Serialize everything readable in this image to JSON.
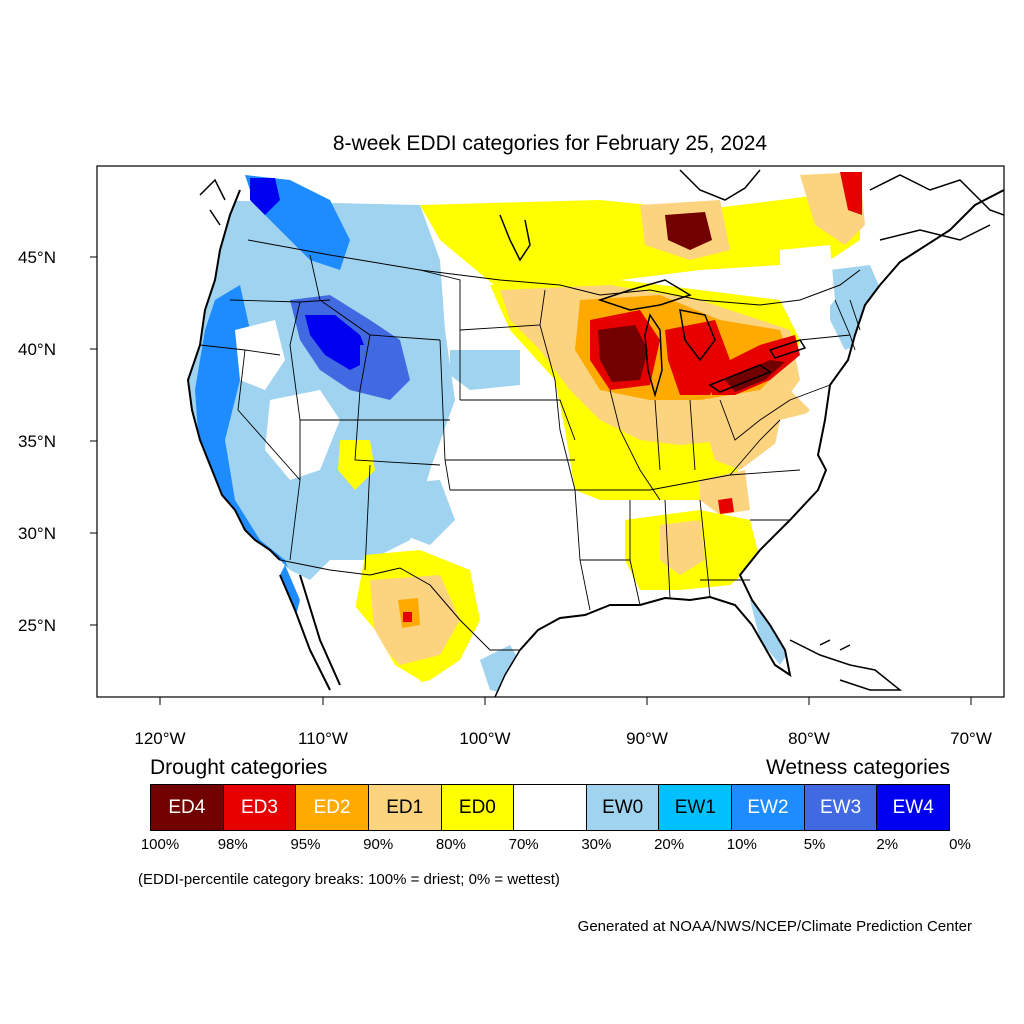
{
  "title": "8-week EDDI categories for February 25, 2024",
  "axes": {
    "lat_labels": [
      "45°N",
      "40°N",
      "35°N",
      "30°N",
      "25°N"
    ],
    "lon_labels": [
      "120°W",
      "110°W",
      "100°W",
      "90°W",
      "80°W",
      "70°W"
    ]
  },
  "legend": {
    "drought_heading": "Drought categories",
    "wetness_heading": "Wetness categories",
    "categories": [
      {
        "label": "ED4",
        "color": "#730000",
        "text_color": "#ffffff"
      },
      {
        "label": "ED3",
        "color": "#e60000",
        "text_color": "#ffffff"
      },
      {
        "label": "ED2",
        "color": "#ffaa00",
        "text_color": "#ffffff"
      },
      {
        "label": "ED1",
        "color": "#fcd37f",
        "text_color": "#000000"
      },
      {
        "label": "ED0",
        "color": "#ffff00",
        "text_color": "#000000"
      },
      {
        "label": "",
        "color": "#ffffff",
        "text_color": "#000000"
      },
      {
        "label": "EW0",
        "color": "#9fd3ef",
        "text_color": "#000000"
      },
      {
        "label": "EW1",
        "color": "#00c0ff",
        "text_color": "#000000"
      },
      {
        "label": "EW2",
        "color": "#1e8cff",
        "text_color": "#ffffff"
      },
      {
        "label": "EW3",
        "color": "#4169e1",
        "text_color": "#ffffff"
      },
      {
        "label": "EW4",
        "color": "#0000f0",
        "text_color": "#ffffff"
      }
    ],
    "percentiles": [
      "100%",
      "98%",
      "95%",
      "90%",
      "80%",
      "70%",
      "30%",
      "20%",
      "10%",
      "5%",
      "2%",
      "0%"
    ]
  },
  "note": "(EDDI-percentile category breaks: 100% = driest; 0% = wettest)",
  "credit": "Generated at NOAA/NWS/NCEP/Climate Prediction Center"
}
